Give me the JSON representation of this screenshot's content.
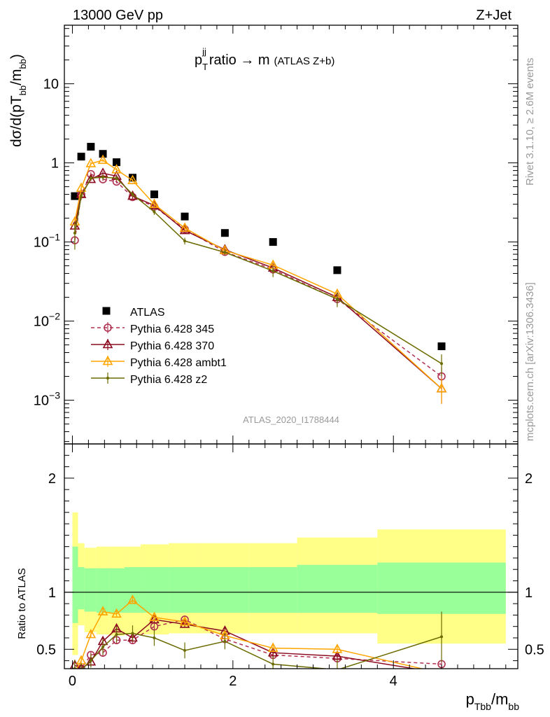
{
  "header": {
    "left": "13000 GeV pp",
    "right": "Z+Jet"
  },
  "side": {
    "rivet": "Rivet 3.1.10, ≥ 2.6M events",
    "mcplots": "mcplots.cern.ch [arXiv:1306.3436]"
  },
  "main_panel": {
    "title": "p_T^jj ratio → m",
    "title_suffix": "(ATLAS Z+b)",
    "ylabel": "dσ/d(pT_bb/m_bb)",
    "watermark": "ATLAS_2020_I1788444",
    "legend": [
      "ATLAS",
      "Pythia 6.428 345",
      "Pythia 6.428 370",
      "Pythia 6.428 ambt1",
      "Pythia 6.428 z2"
    ]
  },
  "ratio_panel": {
    "ylabel": "Ratio to ATLAS"
  },
  "xaxis": {
    "label": "p_Tbb/m_bb"
  },
  "chart_data": [
    {
      "type": "scatter",
      "name": "main",
      "log_y": true,
      "xlim": [
        -0.1,
        5.55
      ],
      "ylim": [
        0.00028,
        55
      ],
      "x_ticks": [
        0,
        2,
        4
      ],
      "y_ticks": [
        0.001,
        0.01,
        0.1,
        1,
        10
      ],
      "y_tick_labels": [
        "10^-3",
        "10^-2",
        "10^-1",
        "1",
        "10"
      ],
      "x": [
        0.03,
        0.11,
        0.23,
        0.38,
        0.55,
        0.75,
        1.02,
        1.4,
        1.9,
        2.5,
        3.3,
        4.6
      ],
      "x_edges": [
        0.0,
        0.07,
        0.15,
        0.3,
        0.45,
        0.65,
        0.85,
        1.2,
        1.6,
        2.2,
        2.8,
        3.8,
        5.4
      ],
      "series": [
        {
          "name": "ATLAS",
          "color": "#000000",
          "marker": "square",
          "values": [
            0.38,
            1.2,
            1.6,
            1.3,
            1.02,
            0.65,
            0.4,
            0.21,
            0.13,
            0.1,
            0.044,
            0.0048
          ]
        },
        {
          "name": "Pythia 6.428 345",
          "color": "#b03050",
          "marker": "circle",
          "dash": "dashed",
          "values": [
            0.105,
            0.4,
            0.72,
            0.62,
            0.58,
            0.37,
            0.28,
            0.145,
            0.075,
            0.045,
            0.019,
            0.002
          ],
          "errors": [
            0.01,
            0.03,
            0.04,
            0.03,
            0.03,
            0.02,
            0.015,
            0.01,
            0.006,
            0.005,
            0.003,
            0.0006
          ]
        },
        {
          "name": "Pythia 6.428 370",
          "color": "#8b0a1e",
          "marker": "triangle",
          "values": [
            0.16,
            0.4,
            0.62,
            0.74,
            0.68,
            0.38,
            0.29,
            0.14,
            0.08,
            0.047,
            0.02,
            0.0014
          ],
          "errors": [
            0.015,
            0.03,
            0.03,
            0.04,
            0.03,
            0.02,
            0.015,
            0.01,
            0.006,
            0.005,
            0.003,
            0.0005
          ]
        },
        {
          "name": "Pythia 6.428 ambt1",
          "color": "#ffa500",
          "marker": "triangle",
          "values": [
            0.18,
            0.48,
            0.98,
            1.08,
            0.82,
            0.6,
            0.3,
            0.15,
            0.078,
            0.051,
            0.022,
            0.0014
          ],
          "errors": [
            0.02,
            0.04,
            0.05,
            0.05,
            0.04,
            0.03,
            0.02,
            0.01,
            0.006,
            0.005,
            0.003,
            0.0005
          ]
        },
        {
          "name": "Pythia 6.428 z2",
          "color": "#6b6b00",
          "marker": "dot",
          "values": [
            0.13,
            0.38,
            0.64,
            0.66,
            0.64,
            0.4,
            0.24,
            0.103,
            0.074,
            0.043,
            0.019,
            0.0029
          ],
          "errors": [
            0.05,
            0.04,
            0.04,
            0.05,
            0.04,
            0.03,
            0.02,
            0.01,
            0.006,
            0.007,
            0.004,
            0.0009
          ]
        }
      ]
    },
    {
      "type": "line",
      "name": "ratio",
      "xlim": [
        -0.1,
        5.55
      ],
      "ylim": [
        0.33,
        2.3
      ],
      "y_ticks": [
        0.5,
        1,
        2
      ],
      "y_tick_labels": [
        "0.5",
        "1",
        "2"
      ],
      "x_ticks": [
        0,
        2,
        4
      ],
      "x_tick_labels": [
        "0",
        "2",
        "4"
      ],
      "x": [
        0.03,
        0.11,
        0.23,
        0.38,
        0.55,
        0.75,
        1.02,
        1.4,
        1.9,
        2.5,
        3.3,
        4.6
      ],
      "x_edges": [
        0.0,
        0.07,
        0.15,
        0.3,
        0.45,
        0.65,
        0.85,
        1.2,
        1.6,
        2.2,
        2.8,
        3.8,
        5.4
      ],
      "bands": {
        "inner_low": [
          0.73,
          0.85,
          0.83,
          0.82,
          0.82,
          0.82,
          0.82,
          0.82,
          0.82,
          0.82,
          0.82,
          0.81
        ],
        "inner_high": [
          1.4,
          1.22,
          1.21,
          1.21,
          1.21,
          1.22,
          1.22,
          1.22,
          1.22,
          1.22,
          1.24,
          1.26
        ],
        "outer_low": [
          0.45,
          0.71,
          0.65,
          0.63,
          0.62,
          0.63,
          0.63,
          0.64,
          0.64,
          0.64,
          0.64,
          0.55
        ],
        "outer_high": [
          1.7,
          1.43,
          1.39,
          1.4,
          1.4,
          1.4,
          1.42,
          1.43,
          1.43,
          1.43,
          1.48,
          1.55
        ],
        "inner_color": "#99ff99",
        "outer_color": "#ffff88"
      },
      "reference": 1,
      "series": [
        {
          "name": "Pythia 6.428 345",
          "color": "#b03050",
          "marker": "circle",
          "dash": "dashed",
          "values": [
            0.28,
            0.33,
            0.45,
            0.47,
            0.58,
            0.58,
            0.7,
            0.76,
            0.59,
            0.45,
            0.42,
            0.37
          ]
        },
        {
          "name": "Pythia 6.428 370",
          "color": "#8b0a1e",
          "marker": "triangle",
          "values": [
            0.36,
            0.33,
            0.39,
            0.57,
            0.68,
            0.6,
            0.76,
            0.72,
            0.66,
            0.47,
            0.44,
            0.29
          ]
        },
        {
          "name": "Pythia 6.428 ambt1",
          "color": "#ffa500",
          "marker": "triangle",
          "values": [
            0.3,
            0.4,
            0.63,
            0.83,
            0.81,
            0.93,
            0.78,
            0.74,
            0.62,
            0.51,
            0.5,
            0.29
          ]
        },
        {
          "name": "Pythia 6.428 z2",
          "color": "#6b6b00",
          "marker": "dot",
          "values": [
            0.33,
            0.32,
            0.4,
            0.52,
            0.63,
            0.64,
            0.6,
            0.49,
            0.57,
            0.37,
            0.32,
            0.61
          ],
          "errors": [
            0.08,
            0.06,
            0.06,
            0.07,
            0.07,
            0.07,
            0.07,
            0.07,
            0.07,
            0.07,
            0.09,
            0.22
          ]
        }
      ]
    }
  ]
}
